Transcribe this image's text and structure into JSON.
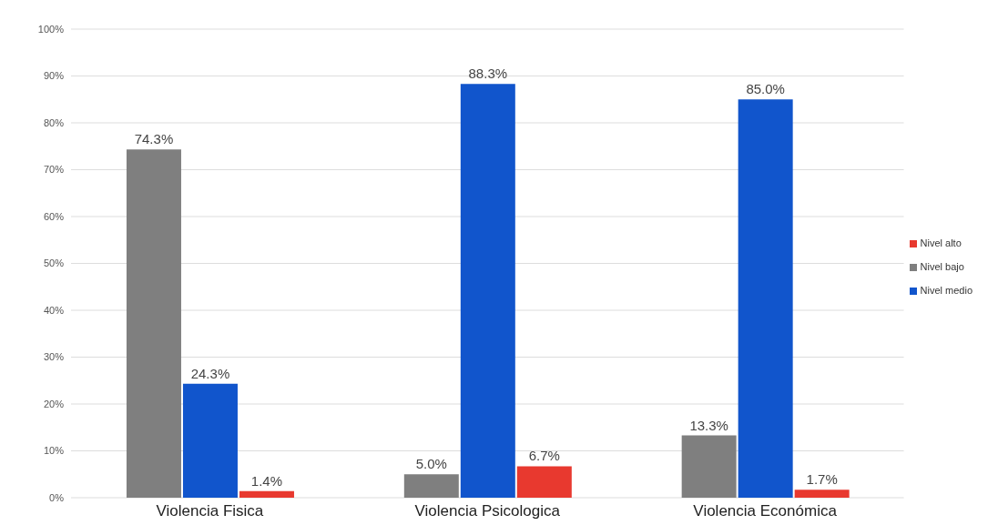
{
  "chart_data": {
    "type": "bar",
    "categories": [
      "Violencia Fisica",
      "Violencia Psicologica",
      "Violencia Económica"
    ],
    "series": [
      {
        "name": "Nivel bajo",
        "color": "#7f7f7f",
        "values": [
          74.3,
          5.0,
          13.3
        ],
        "value_labels": [
          "74.3%",
          "5.0%",
          "13.3%"
        ]
      },
      {
        "name": "Nivel medio",
        "color": "#1155cc",
        "values": [
          24.3,
          88.3,
          85.0
        ],
        "value_labels": [
          "24.3%",
          "88.3%",
          "85.0%"
        ]
      },
      {
        "name": "Nivel alto",
        "color": "#e8392f",
        "values": [
          1.4,
          6.7,
          1.7
        ],
        "value_labels": [
          "1.4%",
          "6.7%",
          "1.7%"
        ]
      }
    ],
    "ylim": [
      0,
      100
    ],
    "yticks": [
      {
        "value": 0,
        "label": "0%"
      },
      {
        "value": 10,
        "label": "10%"
      },
      {
        "value": 20,
        "label": "20%"
      },
      {
        "value": 30,
        "label": "30%"
      },
      {
        "value": 40,
        "label": "40%"
      },
      {
        "value": 50,
        "label": "50%"
      },
      {
        "value": 60,
        "label": "60%"
      },
      {
        "value": 70,
        "label": "70%"
      },
      {
        "value": 80,
        "label": "80%"
      },
      {
        "value": 90,
        "label": "90%"
      },
      {
        "value": 100,
        "label": "100%"
      }
    ],
    "grid": "y",
    "legend": "right"
  }
}
